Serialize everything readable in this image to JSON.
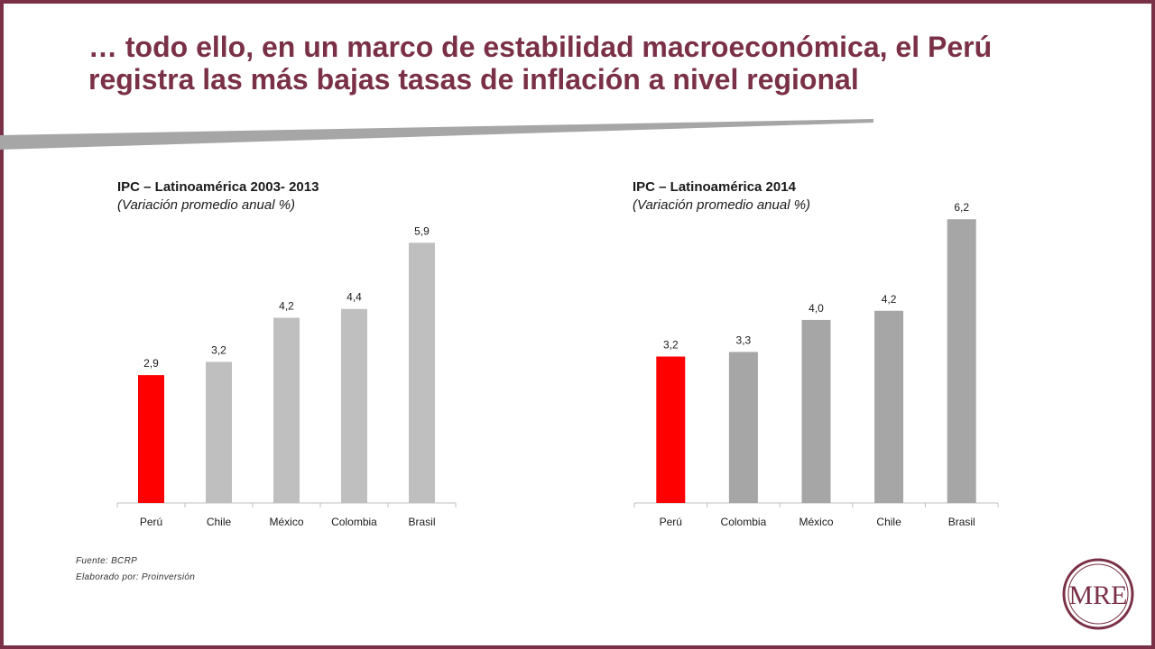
{
  "slide": {
    "title": "… todo ello, en un marco de estabilidad macroeconómica, el Perú registra las más bajas tasas de inflación a nivel regional",
    "source": "Fuente: BCRP",
    "prepared_by": "Elaborado por: Proinversión",
    "logo_text": "MRE",
    "accent_color": "#7a3046"
  },
  "chart_data": [
    {
      "type": "bar",
      "title": "IPC – Latinoamérica 2003- 2013",
      "subtitle": "(Variación promedio anual %)",
      "categories": [
        "Perú",
        "Chile",
        "México",
        "Colombia",
        "Brasil"
      ],
      "values": [
        2.9,
        3.2,
        4.2,
        4.4,
        5.9
      ],
      "value_labels": [
        "2,9",
        "3,2",
        "4,2",
        "4,4",
        "5,9"
      ],
      "colors": [
        "#ff0000",
        "#bfbfbf",
        "#bfbfbf",
        "#bfbfbf",
        "#bfbfbf"
      ],
      "ylim": [
        0,
        6.5
      ],
      "grid": false,
      "legend": "none"
    },
    {
      "type": "bar",
      "title": "IPC – Latinoamérica 2014",
      "subtitle": "(Variación promedio anual %)",
      "categories": [
        "Perú",
        "Colombia",
        "México",
        "Chile",
        "Brasil"
      ],
      "values": [
        3.2,
        3.3,
        4.0,
        4.2,
        6.2
      ],
      "value_labels": [
        "3,2",
        "3,3",
        "4,0",
        "4,2",
        "6,2"
      ],
      "colors": [
        "#ff0000",
        "#a6a6a6",
        "#a6a6a6",
        "#a6a6a6",
        "#a6a6a6"
      ],
      "ylim": [
        0,
        6.5
      ],
      "grid": false,
      "legend": "none"
    }
  ]
}
